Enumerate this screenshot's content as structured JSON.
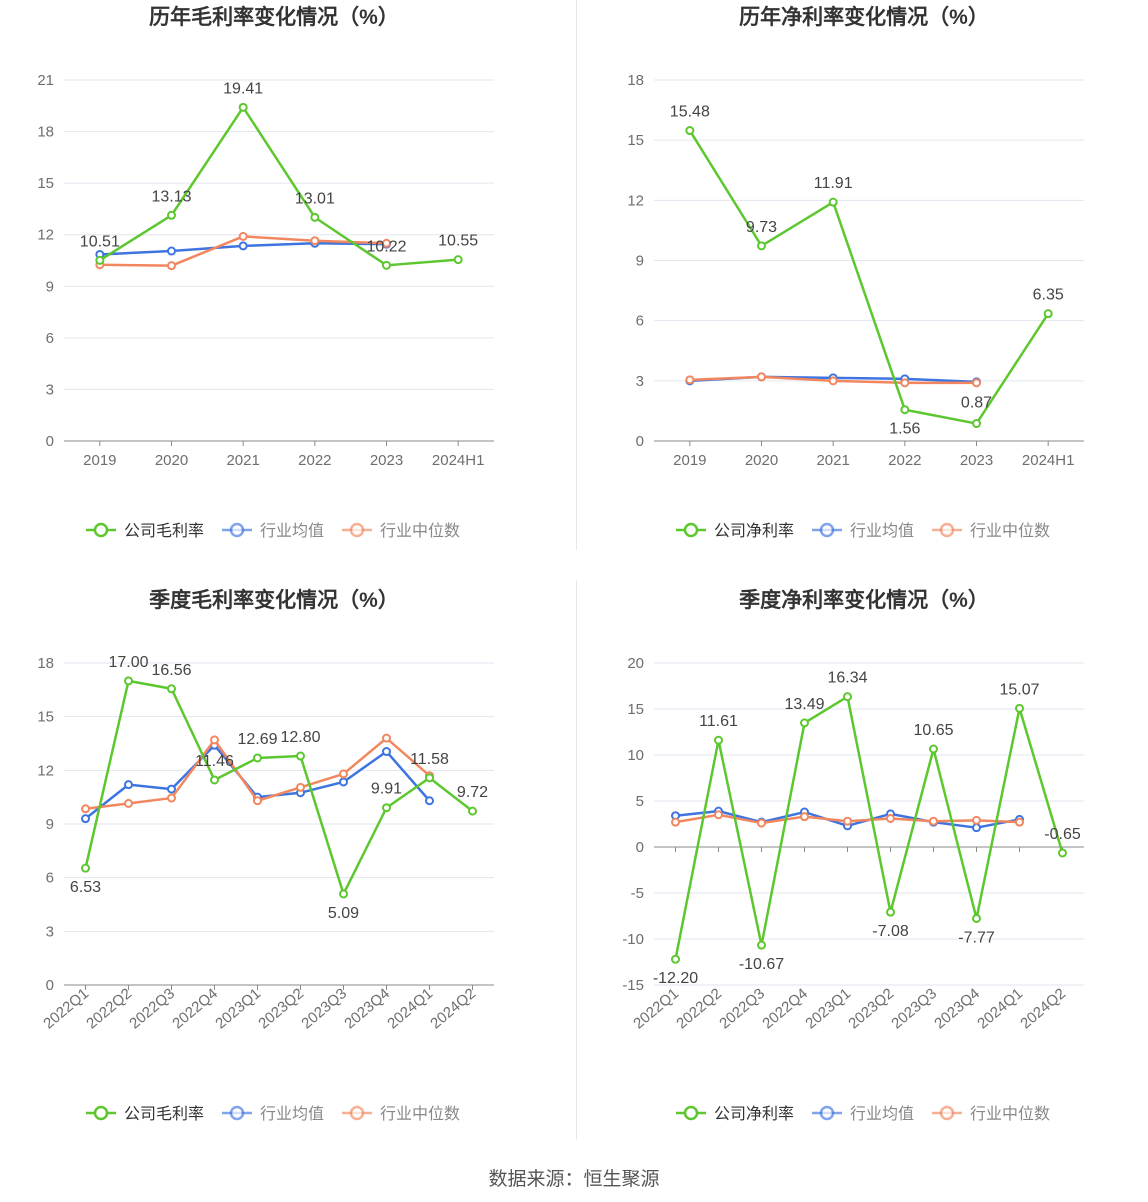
{
  "footer": {
    "source": "数据来源：恒生聚源"
  },
  "colors": {
    "company": "#5cc72e",
    "avg": "#3e74e0",
    "median": "#f2875f",
    "grid": "#e3e6ef",
    "axis": "#8a8a8a",
    "text": "#333333"
  },
  "chart_data": [
    {
      "type": "line",
      "title": "历年毛利率变化情况（%）",
      "categories": [
        "2019",
        "2020",
        "2021",
        "2022",
        "2023",
        "2024H1"
      ],
      "ylim": [
        0,
        21
      ],
      "yticks": [
        0,
        3,
        6,
        9,
        12,
        15,
        18,
        21
      ],
      "grid": true,
      "legend_position": "bottom",
      "series": [
        {
          "name": "公司毛利率",
          "values": [
            10.51,
            13.13,
            19.41,
            13.01,
            10.22,
            10.55
          ],
          "labels": [
            "10.51",
            "13.13",
            "19.41",
            "13.01",
            "10.22",
            "10.55"
          ]
        },
        {
          "name": "行业均值",
          "values": [
            10.85,
            11.05,
            11.35,
            11.5,
            11.45,
            null
          ]
        },
        {
          "name": "行业中位数",
          "values": [
            10.25,
            10.2,
            11.9,
            11.65,
            11.5,
            null
          ]
        }
      ]
    },
    {
      "type": "line",
      "title": "历年净利率变化情况（%）",
      "categories": [
        "2019",
        "2020",
        "2021",
        "2022",
        "2023",
        "2024H1"
      ],
      "ylim": [
        0,
        18
      ],
      "yticks": [
        0,
        3,
        6,
        9,
        12,
        15,
        18
      ],
      "grid": true,
      "legend_position": "bottom",
      "series": [
        {
          "name": "公司净利率",
          "values": [
            15.48,
            9.73,
            11.91,
            1.56,
            0.87,
            6.35
          ],
          "labels": [
            "15.48",
            "9.73",
            "11.91",
            "1.56",
            "0.87",
            "6.35"
          ]
        },
        {
          "name": "行业均值",
          "values": [
            3.0,
            3.2,
            3.15,
            3.1,
            2.95,
            null
          ]
        },
        {
          "name": "行业中位数",
          "values": [
            3.05,
            3.2,
            3.0,
            2.9,
            2.9,
            null
          ]
        }
      ]
    },
    {
      "type": "line",
      "title": "季度毛利率变化情况（%）",
      "categories": [
        "2022Q1",
        "2022Q2",
        "2022Q3",
        "2022Q4",
        "2023Q1",
        "2023Q2",
        "2023Q3",
        "2023Q4",
        "2024Q1",
        "2024Q2"
      ],
      "ylim": [
        0,
        18
      ],
      "yticks": [
        0,
        3,
        6,
        9,
        12,
        15,
        18
      ],
      "grid": true,
      "legend_position": "bottom",
      "series": [
        {
          "name": "公司毛利率",
          "values": [
            6.53,
            17.0,
            16.56,
            11.46,
            12.69,
            12.8,
            5.09,
            9.91,
            11.58,
            9.72
          ],
          "labels": [
            "6.53",
            "17.00",
            "16.56",
            "11.46",
            "12.69",
            "12.80",
            "5.09",
            "9.91",
            "11.58",
            "9.72"
          ]
        },
        {
          "name": "行业均值",
          "values": [
            9.3,
            11.2,
            10.95,
            13.4,
            10.5,
            10.75,
            11.35,
            13.05,
            10.3,
            null
          ]
        },
        {
          "name": "行业中位数",
          "values": [
            9.85,
            10.15,
            10.45,
            13.7,
            10.3,
            11.05,
            11.8,
            13.8,
            11.7,
            null
          ]
        }
      ]
    },
    {
      "type": "line",
      "title": "季度净利率变化情况（%）",
      "categories": [
        "2022Q1",
        "2022Q2",
        "2022Q3",
        "2022Q4",
        "2023Q1",
        "2023Q2",
        "2023Q3",
        "2023Q4",
        "2024Q1",
        "2024Q2"
      ],
      "ylim": [
        -15,
        20
      ],
      "yticks": [
        -15,
        -10,
        -5,
        0,
        5,
        10,
        15,
        20
      ],
      "grid": true,
      "legend_position": "bottom",
      "series": [
        {
          "name": "公司净利率",
          "values": [
            -12.2,
            11.61,
            -10.67,
            13.49,
            16.34,
            -7.08,
            10.65,
            -7.77,
            15.07,
            -0.65
          ],
          "labels": [
            "-12.20",
            "11.61",
            "-10.67",
            "13.49",
            "16.34",
            "-7.08",
            "10.65",
            "-7.77",
            "15.07",
            "-0.65"
          ]
        },
        {
          "name": "行业均值",
          "values": [
            3.4,
            3.9,
            2.7,
            3.8,
            2.3,
            3.6,
            2.7,
            2.1,
            3.0,
            null
          ]
        },
        {
          "name": "行业中位数",
          "values": [
            2.7,
            3.5,
            2.6,
            3.3,
            2.8,
            3.1,
            2.8,
            2.9,
            2.7,
            null
          ]
        }
      ]
    }
  ]
}
